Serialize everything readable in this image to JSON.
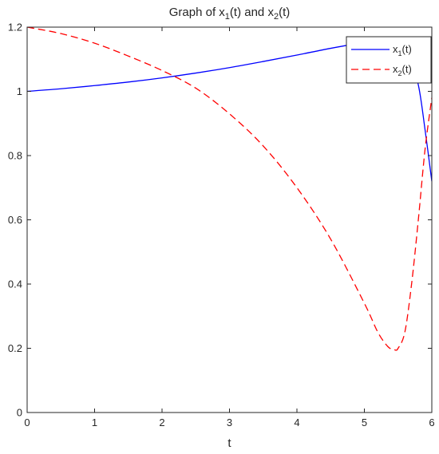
{
  "chart_data": {
    "type": "line",
    "title": {
      "parts": [
        {
          "text": "Graph of x",
          "sub": false
        },
        {
          "text": "1",
          "sub": true
        },
        {
          "text": "(t) and x",
          "sub": false
        },
        {
          "text": "2",
          "sub": true
        },
        {
          "text": "(t)",
          "sub": false
        }
      ]
    },
    "xlabel": "t",
    "ylabel": "",
    "xlim": [
      0,
      6
    ],
    "ylim": [
      0,
      1.2
    ],
    "xticks": [
      "0",
      "1",
      "2",
      "3",
      "4",
      "5",
      "6"
    ],
    "yticks": [
      "0",
      "0.2",
      "0.4",
      "0.6",
      "0.8",
      "1",
      "1.2"
    ],
    "grid": false,
    "legend_position": "top-right",
    "series": [
      {
        "name": "x1(t)",
        "legend_parts": [
          {
            "text": "x",
            "sub": false
          },
          {
            "text": "1",
            "sub": true
          },
          {
            "text": "(t)",
            "sub": false
          }
        ],
        "color": "#0000ff",
        "style": "solid",
        "x": [
          0,
          0.5,
          1,
          1.5,
          2,
          2.5,
          3,
          3.5,
          4,
          4.5,
          5,
          5.25,
          5.5,
          5.65,
          5.8,
          5.9,
          6
        ],
        "y": [
          1.0,
          1.008,
          1.018,
          1.029,
          1.042,
          1.057,
          1.074,
          1.093,
          1.113,
          1.134,
          1.152,
          1.155,
          1.143,
          1.12,
          1.02,
          0.88,
          0.72
        ]
      },
      {
        "name": "x2(t)",
        "legend_parts": [
          {
            "text": "x",
            "sub": false
          },
          {
            "text": "2",
            "sub": true
          },
          {
            "text": "(t)",
            "sub": false
          }
        ],
        "color": "#ff0000",
        "style": "dashed",
        "x": [
          0,
          0.5,
          1,
          1.5,
          2,
          2.5,
          3,
          3.5,
          4,
          4.5,
          5,
          5.2,
          5.35,
          5.45,
          5.5,
          5.6,
          5.7,
          5.8,
          5.9,
          6
        ],
        "y": [
          1.2,
          1.18,
          1.15,
          1.11,
          1.065,
          1.01,
          0.93,
          0.83,
          0.7,
          0.54,
          0.34,
          0.25,
          0.205,
          0.195,
          0.2,
          0.25,
          0.4,
          0.6,
          0.82,
          0.98
        ]
      }
    ]
  }
}
